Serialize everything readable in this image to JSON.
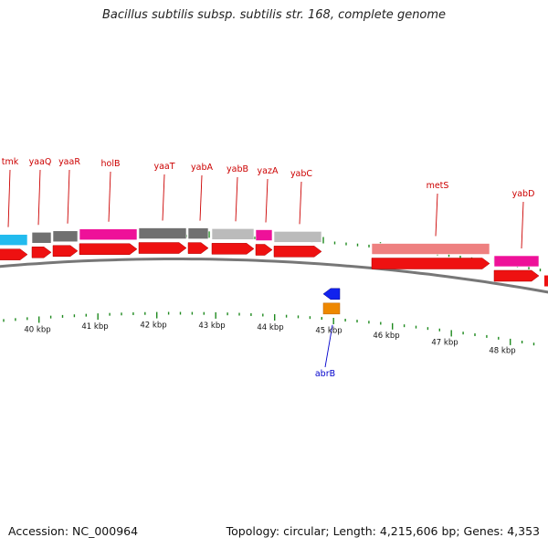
{
  "title": "Bacillus subtilis subsp. subtilis str. 168, complete genome",
  "footer": {
    "accession": "Accession: NC_000964",
    "summary": "Topology: circular; Length: 4,215,606 bp; Genes: 4,353"
  },
  "colors": {
    "forward_gene": "#ee1111",
    "reverse_gene": "#1122ee",
    "backbone": "#777777",
    "tick": "#1f8a1f",
    "forward_label": "#cc0000",
    "reverse_label": "#0000cc"
  },
  "axis": {
    "unit": "kbp",
    "ticks": [
      {
        "label": "40 kbp"
      },
      {
        "label": "41 kbp"
      },
      {
        "label": "42 kbp"
      },
      {
        "label": "43 kbp"
      },
      {
        "label": "44 kbp"
      },
      {
        "label": "45 kbp"
      },
      {
        "label": "46 kbp"
      },
      {
        "label": "47 kbp"
      },
      {
        "label": "48 kbp"
      }
    ]
  },
  "genes": [
    {
      "name": "tmk",
      "strand": "forward",
      "category_color": "#22bbee"
    },
    {
      "name": "yaaQ",
      "strand": "forward",
      "category_color": "#707070"
    },
    {
      "name": "yaaR",
      "strand": "forward",
      "category_color": "#707070"
    },
    {
      "name": "holB",
      "strand": "forward",
      "category_color": "#ee1199"
    },
    {
      "name": "yaaT",
      "strand": "forward",
      "category_color": "#707070"
    },
    {
      "name": "yabA",
      "strand": "forward",
      "category_color": "#707070"
    },
    {
      "name": "yabB",
      "strand": "forward",
      "category_color": "#bbbbbb"
    },
    {
      "name": "yazA",
      "strand": "forward",
      "category_color": "#ee1199"
    },
    {
      "name": "yabC",
      "strand": "forward",
      "category_color": "#bbbbbb"
    },
    {
      "name": "abrB",
      "strand": "reverse",
      "category_color": "#ee8800"
    },
    {
      "name": "metS",
      "strand": "forward",
      "category_color": "#ee8080"
    },
    {
      "name": "yabD",
      "strand": "forward",
      "category_color": "#ee1199"
    }
  ]
}
